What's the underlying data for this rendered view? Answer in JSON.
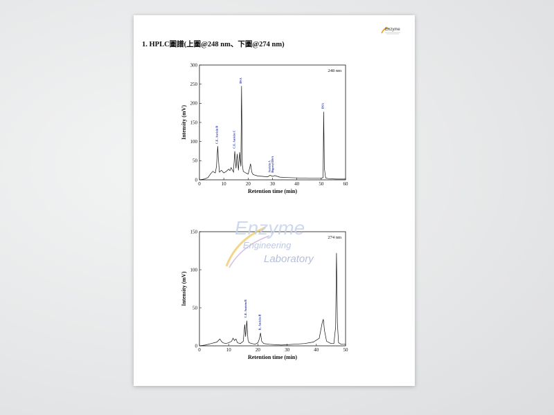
{
  "document": {
    "heading": "1. HPLC圖譜(上圖@248 nm、下圖@274 nm)",
    "logo_text": "Enzyme"
  },
  "watermark": {
    "line1": "Enzyme",
    "line2": "Engineering",
    "line3": "Laboratory"
  },
  "chart_data": [
    {
      "type": "line",
      "annotation": "248 nm",
      "xlabel": "Retention time (min)",
      "ylabel": "Intensity (mV)",
      "xlim": [
        0,
        60
      ],
      "ylim": [
        0,
        300
      ],
      "xticks": [
        0,
        10,
        20,
        30,
        40,
        50,
        60
      ],
      "yticks": [
        0,
        50,
        100,
        150,
        200,
        250,
        300
      ],
      "series": [
        {
          "x": [
            0,
            2,
            3.5,
            4.5,
            5.5,
            6.5,
            7,
            7.5,
            7.8,
            8.2,
            9,
            10,
            11,
            12,
            12.5,
            13,
            14,
            14.5,
            15,
            15.5,
            16,
            16.5,
            17,
            17.3,
            17.6,
            18,
            19,
            20,
            20.5,
            21,
            21.5,
            22,
            24,
            26,
            28,
            29,
            30,
            31,
            33,
            36,
            40,
            45,
            48,
            50,
            50.8,
            51,
            51.3,
            51.8,
            53,
            56,
            60
          ],
          "y": [
            0,
            2,
            6,
            15,
            22,
            18,
            35,
            88,
            55,
            20,
            25,
            18,
            22,
            28,
            24,
            32,
            20,
            75,
            30,
            68,
            25,
            72,
            35,
            245,
            40,
            22,
            18,
            15,
            28,
            42,
            20,
            14,
            10,
            9,
            8,
            12,
            9,
            11,
            7,
            6,
            5,
            4,
            4,
            4,
            6,
            178,
            30,
            5,
            3,
            2,
            2
          ]
        }
      ],
      "peak_labels": [
        {
          "x": 7.6,
          "y": 90,
          "text": "C.E. Auricin B"
        },
        {
          "x": 14.6,
          "y": 78,
          "text": "C.E. Auricin C"
        },
        {
          "x": 17.3,
          "y": 248,
          "text": "DSA"
        },
        {
          "x": 29.2,
          "y": 15,
          "text": "Auricin A"
        },
        {
          "x": 30.4,
          "y": 15,
          "text": "Digcetyl DSA"
        },
        {
          "x": 51.0,
          "y": 182,
          "text": "DSA"
        }
      ]
    },
    {
      "type": "line",
      "annotation": "274 nm",
      "xlabel": "Retention time (min)",
      "ylabel": "Intensity (mV)",
      "xlim": [
        0,
        50
      ],
      "ylim": [
        0,
        150
      ],
      "xticks": [
        0,
        10,
        20,
        30,
        40,
        50
      ],
      "yticks": [
        0,
        50,
        100,
        150
      ],
      "series": [
        {
          "x": [
            0,
            2,
            4,
            6,
            7,
            7.5,
            8,
            9,
            10,
            11,
            11.5,
            12,
            12.5,
            13,
            14,
            15,
            15.5,
            15.8,
            16.2,
            16.6,
            17,
            18,
            19,
            20,
            20.5,
            20.9,
            21.3,
            22,
            24,
            28,
            32,
            36,
            39,
            41,
            42,
            42.4,
            42.8,
            43.5,
            45,
            46,
            46.6,
            46.9,
            47.2,
            47.6,
            48.5,
            50
          ],
          "y": [
            0,
            1,
            3,
            5,
            9,
            6,
            4,
            3,
            4,
            6,
            10,
            7,
            9,
            4,
            3,
            6,
            28,
            12,
            33,
            8,
            4,
            3,
            2,
            4,
            9,
            17,
            6,
            3,
            2,
            1,
            2,
            3,
            5,
            10,
            30,
            35,
            20,
            6,
            3,
            3,
            25,
            122,
            30,
            4,
            2,
            2
          ]
        }
      ],
      "peak_labels": [
        {
          "x": 16.1,
          "y": 35,
          "text": "C.E. Auricin B"
        },
        {
          "x": 21.0,
          "y": 19,
          "text": "K. Auricin B"
        }
      ]
    }
  ]
}
